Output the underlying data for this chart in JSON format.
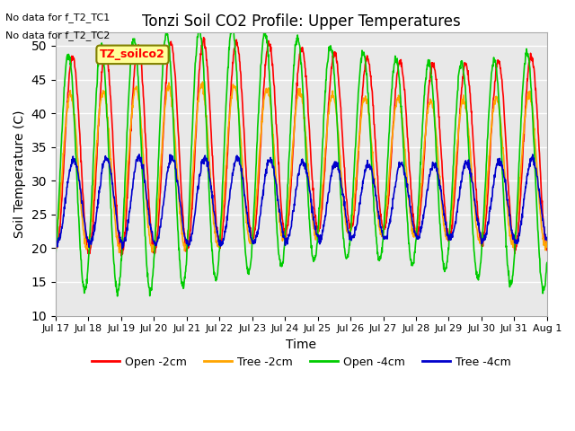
{
  "title": "Tonzi Soil CO2 Profile: Upper Temperatures",
  "ylabel": "Soil Temperature (C)",
  "xlabel": "Time",
  "ylim": [
    10,
    52
  ],
  "yticks": [
    10,
    15,
    20,
    25,
    30,
    35,
    40,
    45,
    50
  ],
  "annotation_text1": "No data for f_T2_TC1",
  "annotation_text2": "No data for f_T2_TC2",
  "box_label": "TZ_soilco2",
  "colors": {
    "open_2cm": "#FF0000",
    "tree_2cm": "#FFA500",
    "open_4cm": "#00CC00",
    "tree_4cm": "#0000CC"
  },
  "legend_labels": [
    "Open -2cm",
    "Tree -2cm",
    "Open -4cm",
    "Tree -4cm"
  ],
  "xtick_labels": [
    "Jul 17",
    "Jul 18",
    "Jul 19",
    "Jul 20",
    "Jul 21",
    "Jul 22",
    "Jul 23",
    "Jul 24",
    "Jul 25",
    "Jul 26",
    "Jul 27",
    "Jul 28",
    "Jul 29",
    "Jul 30",
    "Jul 31",
    "Aug 1"
  ],
  "plot_bg": "#E8E8E8",
  "fig_bg": "#FFFFFF",
  "n_days": 15,
  "samples_per_day": 96,
  "grid_color": "#FFFFFF",
  "linewidth": 1.2
}
